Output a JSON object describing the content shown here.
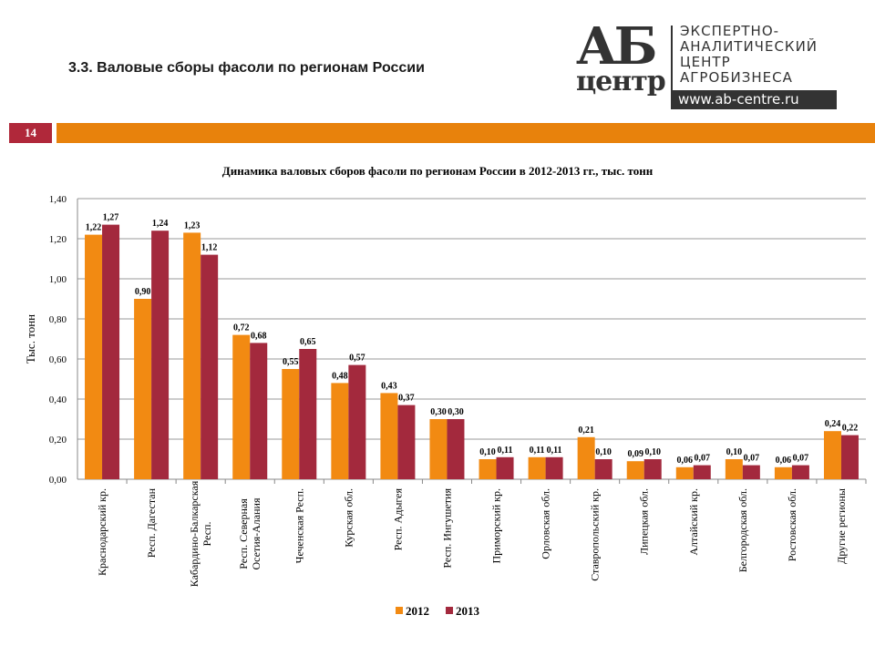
{
  "header": {
    "title": "3.3. Валовые сборы фасоли по регионам России",
    "page_number": "14",
    "logo": {
      "mark": "АБ",
      "sub": "центр",
      "lines": [
        "ЭКСПЕРТНО-",
        "АНАЛИТИЧЕСКИЙ",
        "ЦЕНТР",
        "АГРОБИЗНЕСА"
      ],
      "url": "www.ab-centre.ru"
    }
  },
  "colors": {
    "series_2012": "#f28a12",
    "series_2013": "#a3293d",
    "accent_bar": "#e8820c",
    "page_box": "#b0283a"
  },
  "chart_data": {
    "type": "bar",
    "title": "Динамика валовых сборов фасоли по регионам России в 2012-2013 гг., тыс. тонн",
    "ylabel": "Тыс. тонн",
    "xlabel": "",
    "ylim": [
      0,
      1.4
    ],
    "yticks": [
      "0,00",
      "0,20",
      "0,40",
      "0,60",
      "0,80",
      "1,00",
      "1,20",
      "1,40"
    ],
    "grid": true,
    "legend_position": "bottom",
    "categories": [
      "Краснодарский кр.",
      "Респ. Дагестан",
      "Кабардино-Балкарская\nРесп.",
      "Респ. Северная\nОсетия-Алания",
      "Чеченская Респ.",
      "Курская обл.",
      "Респ. Адыгея",
      "Респ. Ингушетия",
      "Приморский кр.",
      "Орловская обл.",
      "Ставропольский кр.",
      "Липецкая обл.",
      "Алтайский кр.",
      "Белгородская обл.",
      "Ростовская обл.",
      "Другие регионы"
    ],
    "series": [
      {
        "name": "2012",
        "values": [
          1.22,
          0.9,
          1.23,
          0.72,
          0.55,
          0.48,
          0.43,
          0.3,
          0.1,
          0.11,
          0.21,
          0.09,
          0.06,
          0.1,
          0.06,
          0.24
        ],
        "labels": [
          "1,22",
          "0,90",
          "1,23",
          "0,72",
          "0,55",
          "0,48",
          "0,43",
          "0,30",
          "0,10",
          "0,11",
          "0,21",
          "0,09",
          "0,06",
          "0,10",
          "0,06",
          "0,24"
        ]
      },
      {
        "name": "2013",
        "values": [
          1.27,
          1.24,
          1.12,
          0.68,
          0.65,
          0.57,
          0.37,
          0.3,
          0.11,
          0.11,
          0.1,
          0.1,
          0.07,
          0.07,
          0.07,
          0.22
        ],
        "labels": [
          "1,27",
          "1,24",
          "1,12",
          "0,68",
          "0,65",
          "0,57",
          "0,37",
          "0,30",
          "0,11",
          "0,11",
          "0,10",
          "0,10",
          "0,07",
          "0,07",
          "0,07",
          "0,22"
        ]
      }
    ]
  }
}
